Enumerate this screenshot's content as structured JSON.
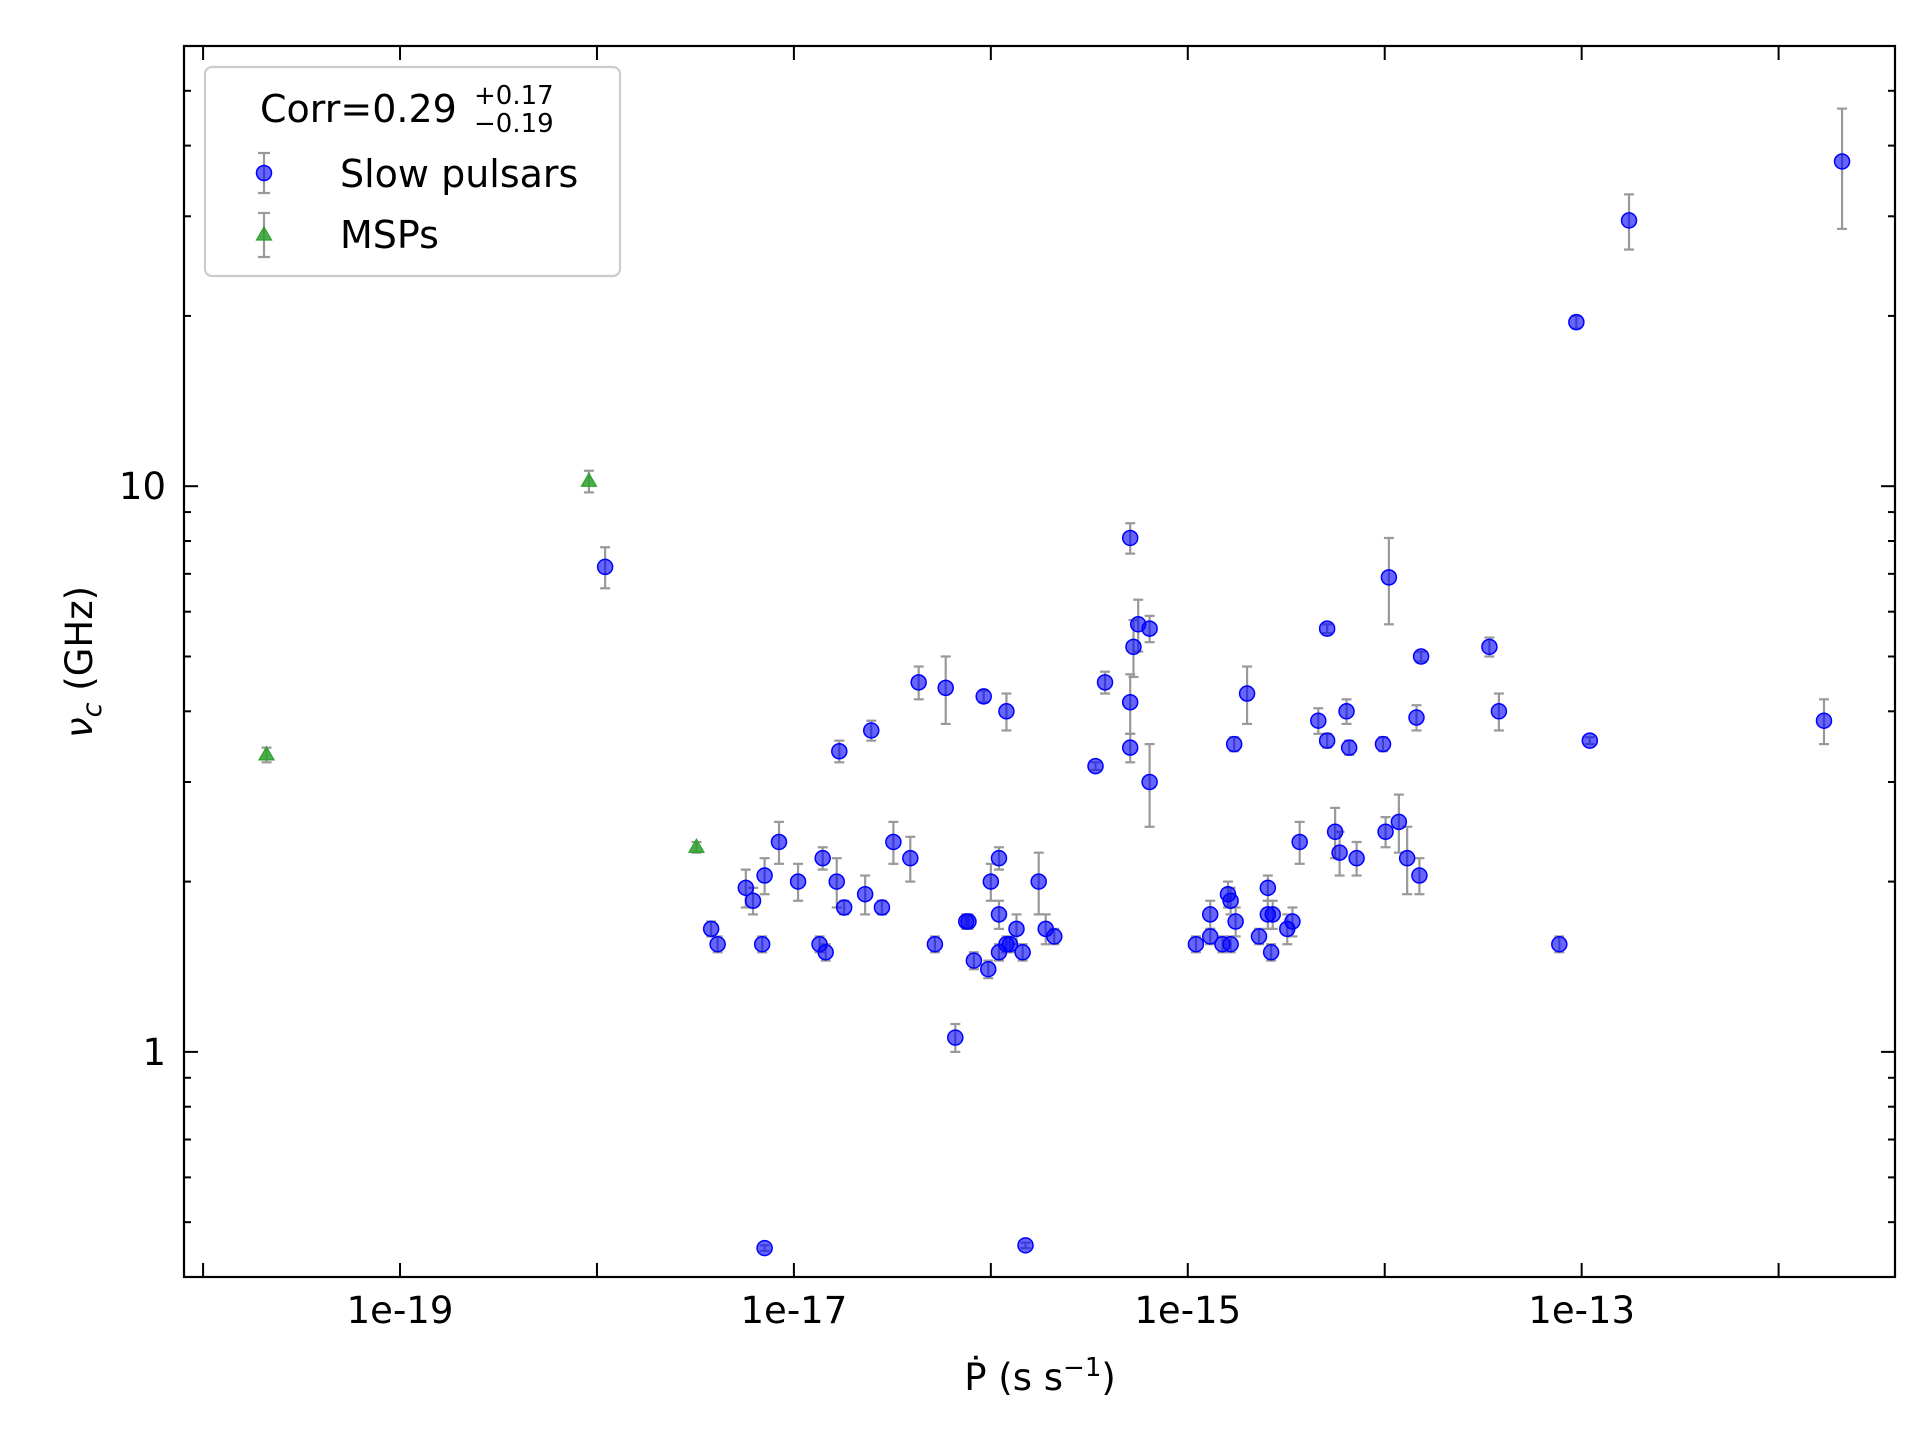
{
  "chart_data": {
    "type": "scatter",
    "xscale": "log",
    "yscale": "log",
    "xlim": [
      8e-21,
      3.9e-12
    ],
    "ylim": [
      0.4,
      60
    ],
    "xlabel": {
      "main": "Ṗ (s s",
      "sup": "−1",
      "end": ")"
    },
    "ylabel": {
      "nu": "ν",
      "sub": "c",
      "rest": " (GHz)"
    },
    "x_ticks": [
      {
        "value": 1e-19,
        "label": "1e-19"
      },
      {
        "value": 1e-17,
        "label": "1e-17"
      },
      {
        "value": 1e-15,
        "label": "1e-15"
      },
      {
        "value": 1e-13,
        "label": "1e-13"
      }
    ],
    "y_ticks": [
      {
        "value": 1,
        "label": "1"
      },
      {
        "value": 10,
        "label": "10"
      }
    ],
    "grid": false,
    "legend": {
      "placement": "top-left",
      "title": {
        "main": "Corr=0.29",
        "sup": "+0.17",
        "sub": "−0.19"
      }
    },
    "series": [
      {
        "name": "Slow pulsars",
        "marker": "circle",
        "color": "#0000ff",
        "errorbar_color": "#999999",
        "points": [
          [
            1.74e-13,
            29.5,
            3.3
          ],
          [
            2.1e-12,
            37.5,
            9
          ],
          [
            9.4e-14,
            19.5,
            0.5
          ],
          [
            1.1e-18,
            7.2,
            0.6
          ],
          [
            5.1e-16,
            8.1,
            0.5
          ],
          [
            1.05e-14,
            6.9,
            1.2
          ],
          [
            5.6e-16,
            5.7,
            0.6
          ],
          [
            6.4e-16,
            5.6,
            0.3
          ],
          [
            5.1e-15,
            5.6,
            0.1
          ],
          [
            5.3e-16,
            5.2,
            0.6
          ],
          [
            1.53e-14,
            5.0,
            0.1
          ],
          [
            3.4e-14,
            5.2,
            0.2
          ],
          [
            3.8e-16,
            4.5,
            0.2
          ],
          [
            4.3e-17,
            4.5,
            0.3
          ],
          [
            5.9e-17,
            4.4,
            0.6
          ],
          [
            9.2e-17,
            4.25,
            0.1
          ],
          [
            2e-15,
            4.3,
            0.5
          ],
          [
            5.1e-16,
            4.15,
            0.5
          ],
          [
            1.2e-16,
            4.0,
            0.3
          ],
          [
            3.8e-14,
            4.0,
            0.3
          ],
          [
            6.4e-15,
            4.0,
            0.2
          ],
          [
            4.6e-15,
            3.85,
            0.2
          ],
          [
            1.45e-14,
            3.9,
            0.2
          ],
          [
            5.1e-15,
            3.55,
            0.1
          ],
          [
            6.6e-15,
            3.45,
            0.1
          ],
          [
            9.8e-15,
            3.5,
            0.1
          ],
          [
            1.72e-15,
            3.5,
            0.1
          ],
          [
            5.1e-16,
            3.45,
            0.2
          ],
          [
            2.47e-17,
            3.7,
            0.15
          ],
          [
            1.7e-17,
            3.4,
            0.15
          ],
          [
            1.1e-13,
            3.55,
            0.05
          ],
          [
            1.7e-12,
            3.85,
            0.35
          ],
          [
            3.4e-16,
            3.2,
            0.05
          ],
          [
            6.4e-16,
            3.0,
            0.5
          ],
          [
            1.18e-14,
            2.55,
            0.3
          ],
          [
            5.6e-15,
            2.45,
            0.25
          ],
          [
            1.01e-14,
            2.45,
            0.15
          ],
          [
            3.7e-15,
            2.35,
            0.2
          ],
          [
            5.9e-15,
            2.25,
            0.2
          ],
          [
            7.2e-15,
            2.2,
            0.15
          ],
          [
            1.3e-14,
            2.2,
            0.3
          ],
          [
            1.5e-14,
            2.05,
            0.15
          ],
          [
            3.2e-17,
            2.35,
            0.2
          ],
          [
            3.9e-17,
            2.2,
            0.2
          ],
          [
            1.1e-16,
            2.2,
            0.1
          ],
          [
            2.3e-17,
            1.9,
            0.15
          ],
          [
            8.4e-18,
            2.35,
            0.2
          ],
          [
            7.1e-18,
            2.05,
            0.15
          ],
          [
            1.05e-17,
            2.0,
            0.15
          ],
          [
            1.4e-17,
            2.2,
            0.1
          ],
          [
            1.65e-17,
            2.0,
            0.2
          ],
          [
            1.8e-17,
            1.8,
            0.05
          ],
          [
            2.8e-17,
            1.8,
            0.05
          ],
          [
            5.7e-18,
            1.95,
            0.15
          ],
          [
            6.2e-18,
            1.85,
            0.1
          ],
          [
            1.1e-16,
            1.75,
            0.1
          ],
          [
            1e-16,
            2.0,
            0.15
          ],
          [
            1.35e-16,
            1.65,
            0.1
          ],
          [
            1.9e-16,
            1.65,
            0.1
          ],
          [
            2.1e-16,
            1.6,
            0.05
          ],
          [
            1.75e-16,
            2.0,
            0.25
          ],
          [
            1.6e-15,
            1.9,
            0.1
          ],
          [
            2.55e-15,
            1.95,
            0.1
          ],
          [
            1.65e-15,
            1.85,
            0.1
          ],
          [
            1.3e-15,
            1.75,
            0.1
          ],
          [
            1.75e-15,
            1.7,
            0.1
          ],
          [
            2.55e-15,
            1.75,
            0.1
          ],
          [
            3.2e-15,
            1.65,
            0.1
          ],
          [
            3.4e-15,
            1.7,
            0.1
          ],
          [
            2.7e-15,
            1.75,
            0.1
          ],
          [
            2.3e-15,
            1.6,
            0.05
          ],
          [
            1.65e-15,
            1.55,
            0.05
          ],
          [
            2.65e-15,
            1.5,
            0.05
          ],
          [
            3.8e-18,
            1.65,
            0.05
          ],
          [
            4.1e-18,
            1.55,
            0.05
          ],
          [
            6.9e-18,
            1.55,
            0.05
          ],
          [
            1.35e-17,
            1.55,
            0.05
          ],
          [
            1.45e-17,
            1.5,
            0.05
          ],
          [
            5.2e-17,
            1.55,
            0.05
          ],
          [
            7.7e-17,
            1.7,
            0.05
          ],
          [
            7.5e-17,
            1.7,
            0.05
          ],
          [
            8.2e-17,
            1.45,
            0.05
          ],
          [
            9.7e-17,
            1.4,
            0.05
          ],
          [
            1.1e-16,
            1.5,
            0.05
          ],
          [
            1.2e-16,
            1.55,
            0.05
          ],
          [
            1.25e-16,
            1.55,
            0.05
          ],
          [
            1.45e-16,
            1.5,
            0.05
          ],
          [
            1.1e-15,
            1.55,
            0.05
          ],
          [
            1.3e-15,
            1.6,
            0.05
          ],
          [
            1.5e-15,
            1.55,
            0.05
          ],
          [
            7.7e-14,
            1.55,
            0.05
          ],
          [
            6.6e-17,
            1.06,
            0.06
          ],
          [
            7.1e-18,
            0.45,
            0.005
          ],
          [
            1.5e-16,
            0.455,
            0.005
          ]
        ]
      },
      {
        "name": "MSPs",
        "marker": "triangle",
        "color": "#2ca02c",
        "errorbar_color": "#999999",
        "points": [
          [
            2.1e-20,
            3.35,
            0.1
          ],
          [
            9.1e-19,
            10.2,
            0.45
          ],
          [
            3.2e-18,
            2.3,
            0.05
          ]
        ]
      }
    ]
  }
}
